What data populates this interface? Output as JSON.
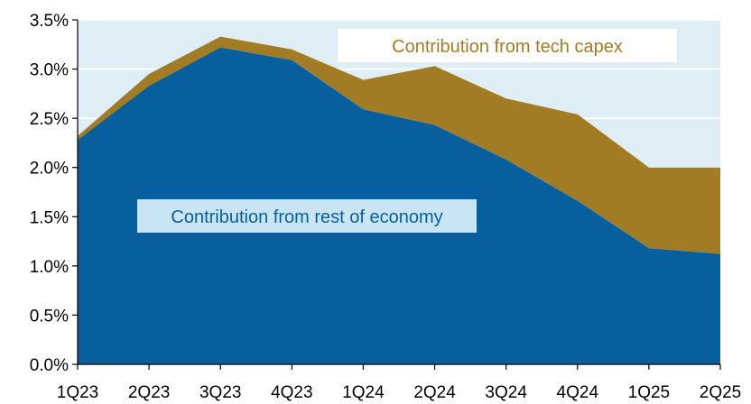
{
  "chart_data": {
    "type": "area",
    "stacked": true,
    "categories": [
      "1Q23",
      "2Q23",
      "3Q23",
      "4Q23",
      "1Q24",
      "2Q24",
      "3Q24",
      "4Q24",
      "1Q25",
      "2Q25"
    ],
    "series": [
      {
        "name": "Contribution from rest of economy",
        "values": [
          2.28,
          2.83,
          3.22,
          3.09,
          2.59,
          2.43,
          2.08,
          1.66,
          1.18,
          1.12
        ]
      },
      {
        "name": "Contribution from tech capex",
        "values": [
          0.04,
          0.12,
          0.11,
          0.11,
          0.3,
          0.6,
          0.62,
          0.88,
          0.82,
          0.88
        ]
      }
    ],
    "ylim": [
      0,
      3.5
    ],
    "y_ticks": [
      0.0,
      0.5,
      1.0,
      1.5,
      2.0,
      2.5,
      3.0,
      3.5
    ],
    "y_tick_format": "percent_1dp",
    "grid": true,
    "colors": {
      "rest_of_economy": "#075f9d",
      "tech_capex": "#a17c25",
      "plot_background": "#dfeef4",
      "gridline": "#ffffff",
      "annotation_tech_background": "#ffffff",
      "annotation_tech_text": "#a17c25",
      "annotation_rest_background": "#c9e4f2",
      "annotation_rest_text": "#075f9d"
    },
    "annotations": {
      "tech": "Contribution from tech capex",
      "rest": "Contribution from rest of economy"
    }
  }
}
